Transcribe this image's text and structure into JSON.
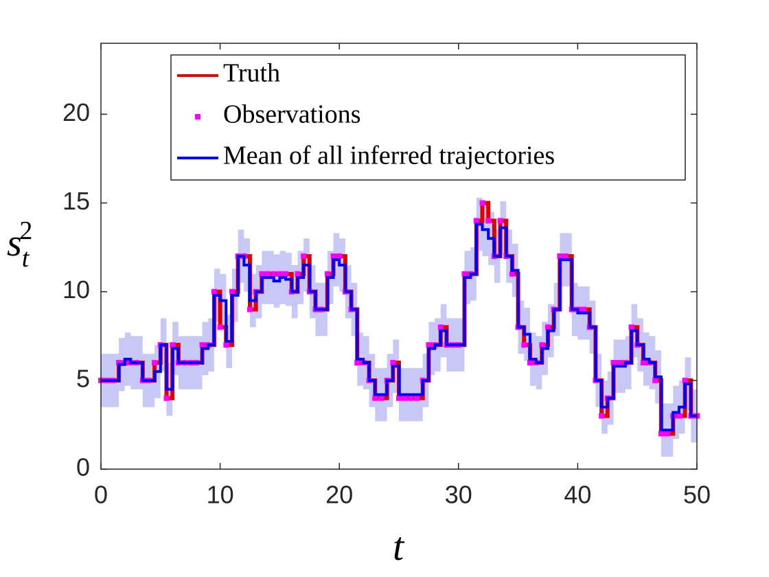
{
  "chart_data": {
    "type": "step",
    "xlabel": "t",
    "ylabel": {
      "base": "s",
      "sub": "t",
      "sup": "2"
    },
    "xlim": [
      0,
      50
    ],
    "xticks": [
      0,
      10,
      20,
      30,
      40,
      50
    ],
    "ylim": [
      0,
      24
    ],
    "yticks": [
      0,
      5,
      10,
      15,
      20
    ],
    "legend": "top-right",
    "x": [
      0,
      0.5,
      1,
      1.5,
      2,
      2.5,
      3,
      3.5,
      4,
      4.5,
      5,
      5.5,
      6,
      6.5,
      7,
      7.5,
      8,
      8.5,
      9,
      9.5,
      10,
      10.5,
      11,
      11.5,
      12,
      12.5,
      13,
      13.5,
      14,
      14.5,
      15,
      15.5,
      16,
      16.5,
      17,
      17.5,
      18,
      18.5,
      19,
      19.5,
      20,
      20.5,
      21,
      21.5,
      22,
      22.5,
      23,
      23.5,
      24,
      24.5,
      25,
      25.5,
      26,
      26.5,
      27,
      27.5,
      28,
      28.5,
      29,
      29.5,
      30,
      30.5,
      31,
      31.5,
      32,
      32.5,
      33,
      33.5,
      34,
      34.5,
      35,
      35.5,
      36,
      36.5,
      37,
      37.5,
      38,
      38.5,
      39,
      39.5,
      40,
      40.5,
      41,
      41.5,
      42,
      42.5,
      43,
      43.5,
      44,
      44.5,
      45,
      45.5,
      46,
      46.5,
      47,
      47.5,
      48,
      48.5,
      49,
      49.5,
      50
    ],
    "series": [
      {
        "name": "Truth",
        "color": "#e00000",
        "style": "line",
        "values": [
          5,
          5,
          5,
          6,
          6,
          6,
          6,
          5,
          5,
          6,
          7,
          4,
          7,
          6,
          6,
          6,
          6,
          7,
          7,
          10,
          8,
          7,
          10,
          12,
          12,
          9,
          10,
          11,
          11,
          11,
          11,
          11,
          10,
          11,
          12,
          10,
          9,
          9,
          11,
          12,
          12,
          10,
          9,
          6,
          6,
          5,
          4,
          4,
          5,
          6,
          4,
          4,
          4,
          4,
          5,
          7,
          7,
          8,
          7,
          7,
          7,
          11,
          11,
          14,
          15,
          14,
          12,
          14,
          12,
          11,
          8,
          7,
          6,
          6,
          7,
          8,
          9,
          12,
          12,
          9,
          9,
          9,
          8,
          5,
          3,
          4,
          6,
          6,
          6,
          8,
          7,
          6,
          6,
          5,
          2,
          2,
          3,
          3,
          5,
          3,
          3
        ]
      },
      {
        "name": "Observations",
        "color": "#ff00ff",
        "style": "marker",
        "values": [
          5,
          5,
          5,
          6,
          6,
          6,
          6,
          5,
          5,
          6,
          7,
          4,
          7,
          6,
          6,
          6,
          6,
          7,
          7,
          10,
          8,
          7,
          10,
          12,
          12,
          9,
          10,
          11,
          11,
          11,
          11,
          11,
          10,
          11,
          12,
          10,
          9,
          9,
          11,
          12,
          12,
          10,
          9,
          6,
          6,
          5,
          4,
          4,
          5,
          6,
          4,
          4,
          4,
          4,
          5,
          7,
          7,
          8,
          7,
          7,
          7,
          11,
          11,
          14,
          15,
          14,
          12,
          14,
          12,
          11,
          8,
          7,
          6,
          6,
          7,
          8,
          9,
          12,
          12,
          9,
          9,
          9,
          8,
          5,
          3,
          4,
          6,
          6,
          6,
          8,
          7,
          6,
          6,
          5,
          2,
          2,
          3,
          3,
          5,
          3,
          3
        ]
      },
      {
        "name": "Mean of all inferred trajectories",
        "color": "#0000ff",
        "style": "line",
        "spread": 1.5,
        "spread_color": "#c8c8f6",
        "values": [
          5,
          5,
          5,
          5.9,
          6.2,
          6,
          6,
          5,
          5,
          5.5,
          7,
          4.5,
          6.8,
          6,
          6,
          6,
          6,
          6.8,
          7,
          9.8,
          9.5,
          7.2,
          9.8,
          12,
          11.5,
          9.5,
          10,
          10.8,
          10.8,
          10.6,
          10.8,
          10.7,
          10,
          10.8,
          11.5,
          10,
          9,
          9,
          10.8,
          11.8,
          11.5,
          10,
          9,
          6.2,
          6,
          5,
          4.2,
          4.2,
          5,
          5.8,
          4.2,
          4.2,
          4.2,
          4.2,
          5,
          6.8,
          7,
          7.8,
          7,
          7,
          7,
          10.8,
          11,
          13.8,
          13.5,
          13,
          12,
          13.6,
          12,
          11.2,
          8,
          7.6,
          6.2,
          6,
          6.8,
          7.8,
          9,
          11.8,
          11.8,
          9,
          8.8,
          8.8,
          8,
          5,
          3.5,
          4,
          5.8,
          5.8,
          6,
          7.8,
          7,
          6.2,
          6,
          5.2,
          2.2,
          2.2,
          3.2,
          3.5,
          4.8,
          3,
          3
        ]
      }
    ]
  }
}
